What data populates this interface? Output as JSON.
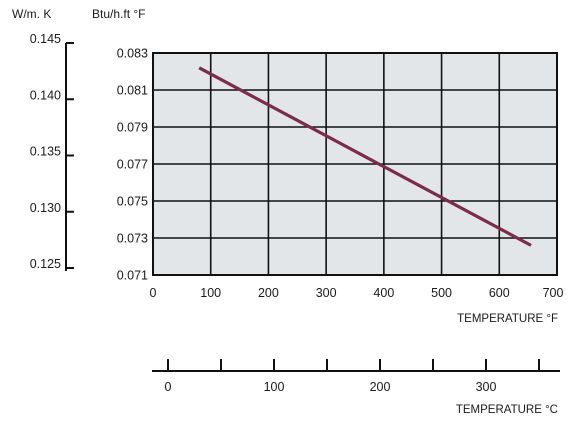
{
  "chart_data": {
    "type": "line",
    "title": "",
    "colors": {
      "plot_bg": "#e3e6e8",
      "grid": "#111111",
      "line": "#7a2c48"
    },
    "grid": true,
    "x_axis": {
      "label": "TEMPERATURE °F",
      "range": [
        0,
        700
      ],
      "ticks": [
        0,
        100,
        200,
        300,
        400,
        500,
        600,
        700
      ]
    },
    "y_axis": {
      "unit": "Btu/h.ft °F",
      "range": [
        0.071,
        0.083
      ],
      "ticks": [
        "0.071",
        "0.073",
        "0.075",
        "0.077",
        "0.079",
        "0.081",
        "0.083"
      ]
    },
    "y_axis_secondary": {
      "unit": "W/m. K",
      "ticks": [
        "0.125",
        "0.130",
        "0.135",
        "0.140",
        "0.145"
      ]
    },
    "x_axis_secondary": {
      "label": "TEMPERATURE °C",
      "labeled_ticks": [
        "0",
        "100",
        "200",
        "300"
      ],
      "labeled_values": [
        0,
        100,
        200,
        300
      ],
      "minor_values": [
        50,
        150,
        250,
        350
      ]
    },
    "series": [
      {
        "x": [
          80,
          655
        ],
        "y": [
          0.0822,
          0.0726
        ]
      }
    ]
  }
}
